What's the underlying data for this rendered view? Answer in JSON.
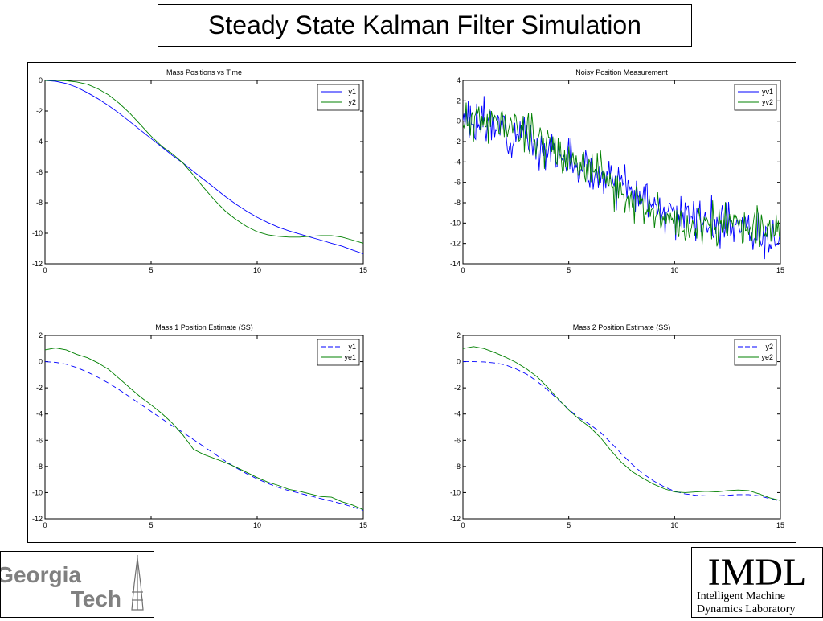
{
  "slide": {
    "title": "Steady State Kalman Filter Simulation"
  },
  "logos": {
    "left": {
      "name": "Georgia Tech",
      "line1": "Georgia",
      "line2": "Tech"
    },
    "right": {
      "acronym": "IMDL",
      "line1": "Intelligent Machine",
      "line2": "Dynamics Laboratory"
    }
  },
  "colors": {
    "blue": "#0000ff",
    "green": "#008000",
    "axis": "#000000"
  },
  "chart_data": [
    {
      "type": "line",
      "title": "Mass Positions vs Time",
      "xlabel": "",
      "ylabel": "",
      "xlim": [
        0,
        15
      ],
      "ylim": [
        -12,
        0
      ],
      "xticks": [
        0,
        5,
        10,
        15
      ],
      "yticks": [
        0,
        -2,
        -4,
        -6,
        -8,
        -10,
        -12
      ],
      "grid": false,
      "legend": "top-right",
      "x": [
        0,
        0.5,
        1,
        1.5,
        2,
        2.5,
        3,
        3.5,
        4,
        4.5,
        5,
        5.5,
        6,
        6.5,
        7,
        7.5,
        8,
        8.5,
        9,
        9.5,
        10,
        10.5,
        11,
        11.5,
        12,
        12.5,
        13,
        13.5,
        14,
        14.5,
        15
      ],
      "series": [
        {
          "name": "y1",
          "style": "solid",
          "color": "blue",
          "values": [
            0,
            -0.05,
            -0.2,
            -0.45,
            -0.8,
            -1.2,
            -1.65,
            -2.15,
            -2.7,
            -3.25,
            -3.8,
            -4.35,
            -4.9,
            -5.4,
            -5.95,
            -6.5,
            -7.05,
            -7.6,
            -8.1,
            -8.55,
            -8.95,
            -9.3,
            -9.6,
            -9.85,
            -10.05,
            -10.25,
            -10.45,
            -10.65,
            -10.85,
            -11.1,
            -11.35
          ]
        },
        {
          "name": "y2",
          "style": "solid",
          "color": "green",
          "values": [
            0,
            0,
            -0.02,
            -0.1,
            -0.25,
            -0.55,
            -0.95,
            -1.5,
            -2.15,
            -2.9,
            -3.65,
            -4.3,
            -4.8,
            -5.4,
            -6.2,
            -7.05,
            -7.85,
            -8.55,
            -9.1,
            -9.55,
            -9.9,
            -10.1,
            -10.2,
            -10.25,
            -10.25,
            -10.2,
            -10.15,
            -10.15,
            -10.25,
            -10.45,
            -10.65
          ]
        }
      ]
    },
    {
      "type": "line",
      "title": "Noisy Position Measurement",
      "xlabel": "",
      "ylabel": "",
      "xlim": [
        0,
        15
      ],
      "ylim": [
        -14,
        4
      ],
      "xticks": [
        0,
        5,
        10,
        15
      ],
      "yticks": [
        4,
        2,
        0,
        -2,
        -4,
        -6,
        -8,
        -10,
        -12,
        -14
      ],
      "grid": false,
      "legend": "top-right",
      "x": [
        0,
        0.5,
        1,
        1.5,
        2,
        2.5,
        3,
        3.5,
        4,
        4.5,
        5,
        5.5,
        6,
        6.5,
        7,
        7.5,
        8,
        8.5,
        9,
        9.5,
        10,
        10.5,
        11,
        11.5,
        12,
        12.5,
        13,
        13.5,
        14,
        14.5,
        15
      ],
      "series": [
        {
          "name": "yv1",
          "style": "solid",
          "color": "blue",
          "noise": 1.0,
          "seed": 3,
          "values": [
            0,
            -0.05,
            -0.2,
            -0.45,
            -0.8,
            -1.2,
            -1.65,
            -2.15,
            -2.7,
            -3.25,
            -3.8,
            -4.35,
            -4.9,
            -5.4,
            -5.95,
            -6.5,
            -7.05,
            -7.6,
            -8.1,
            -8.55,
            -8.95,
            -9.3,
            -9.6,
            -9.85,
            -10.05,
            -10.25,
            -10.45,
            -10.65,
            -10.85,
            -11.1,
            -11.35
          ]
        },
        {
          "name": "yv2",
          "style": "solid",
          "color": "green",
          "noise": 1.0,
          "seed": 11,
          "values": [
            0,
            0,
            -0.02,
            -0.1,
            -0.25,
            -0.55,
            -0.95,
            -1.5,
            -2.15,
            -2.9,
            -3.65,
            -4.3,
            -4.8,
            -5.4,
            -6.2,
            -7.05,
            -7.85,
            -8.55,
            -9.1,
            -9.55,
            -9.9,
            -10.1,
            -10.2,
            -10.25,
            -10.25,
            -10.2,
            -10.15,
            -10.15,
            -10.25,
            -10.45,
            -10.65
          ]
        }
      ]
    },
    {
      "type": "line",
      "title": "Mass 1 Position Estimate (SS)",
      "xlabel": "",
      "ylabel": "",
      "xlim": [
        0,
        15
      ],
      "ylim": [
        -12,
        2
      ],
      "xticks": [
        0,
        5,
        10,
        15
      ],
      "yticks": [
        2,
        0,
        -2,
        -4,
        -6,
        -8,
        -10,
        -12
      ],
      "grid": false,
      "legend": "top-right",
      "x": [
        0,
        0.5,
        1,
        1.5,
        2,
        2.5,
        3,
        3.5,
        4,
        4.5,
        5,
        5.5,
        6,
        6.5,
        7,
        7.5,
        8,
        8.5,
        9,
        9.5,
        10,
        10.5,
        11,
        11.5,
        12,
        12.5,
        13,
        13.5,
        14,
        14.5,
        15
      ],
      "series": [
        {
          "name": "y1",
          "style": "dashed",
          "color": "blue",
          "values": [
            0,
            -0.05,
            -0.2,
            -0.45,
            -0.8,
            -1.2,
            -1.65,
            -2.15,
            -2.7,
            -3.25,
            -3.8,
            -4.35,
            -4.9,
            -5.4,
            -5.95,
            -6.5,
            -7.05,
            -7.6,
            -8.1,
            -8.55,
            -8.95,
            -9.3,
            -9.6,
            -9.85,
            -10.05,
            -10.25,
            -10.45,
            -10.65,
            -10.85,
            -11.1,
            -11.35
          ]
        },
        {
          "name": "ye1",
          "style": "solid",
          "color": "green",
          "values": [
            0.9,
            1.05,
            0.9,
            0.55,
            0.3,
            -0.1,
            -0.6,
            -1.3,
            -2.0,
            -2.7,
            -3.3,
            -3.95,
            -4.7,
            -5.6,
            -6.7,
            -7.1,
            -7.4,
            -7.7,
            -8.05,
            -8.45,
            -8.85,
            -9.2,
            -9.45,
            -9.75,
            -9.9,
            -10.1,
            -10.3,
            -10.35,
            -10.7,
            -10.95,
            -11.3
          ]
        }
      ]
    },
    {
      "type": "line",
      "title": "Mass 2 Position Estimate (SS)",
      "xlabel": "",
      "ylabel": "",
      "xlim": [
        0,
        15
      ],
      "ylim": [
        -12,
        2
      ],
      "xticks": [
        0,
        5,
        10,
        15
      ],
      "yticks": [
        2,
        0,
        -2,
        -4,
        -6,
        -8,
        -10,
        -12
      ],
      "grid": false,
      "legend": "top-right",
      "x": [
        0,
        0.5,
        1,
        1.5,
        2,
        2.5,
        3,
        3.5,
        4,
        4.5,
        5,
        5.5,
        6,
        6.5,
        7,
        7.5,
        8,
        8.5,
        9,
        9.5,
        10,
        10.5,
        11,
        11.5,
        12,
        12.5,
        13,
        13.5,
        14,
        14.5,
        15
      ],
      "series": [
        {
          "name": "y2",
          "style": "dashed",
          "color": "blue",
          "values": [
            0,
            0,
            -0.02,
            -0.1,
            -0.25,
            -0.55,
            -0.95,
            -1.5,
            -2.15,
            -2.9,
            -3.65,
            -4.3,
            -4.8,
            -5.4,
            -6.2,
            -7.05,
            -7.85,
            -8.55,
            -9.1,
            -9.55,
            -9.9,
            -10.1,
            -10.2,
            -10.25,
            -10.25,
            -10.2,
            -10.15,
            -10.15,
            -10.25,
            -10.45,
            -10.65
          ]
        },
        {
          "name": "ye2",
          "style": "solid",
          "color": "green",
          "values": [
            1.0,
            1.15,
            1.0,
            0.7,
            0.35,
            -0.05,
            -0.55,
            -1.15,
            -1.95,
            -2.85,
            -3.7,
            -4.4,
            -5.0,
            -5.8,
            -6.8,
            -7.7,
            -8.4,
            -8.9,
            -9.35,
            -9.7,
            -9.95,
            -10.0,
            -9.95,
            -9.9,
            -9.95,
            -9.85,
            -9.8,
            -9.85,
            -10.1,
            -10.4,
            -10.6
          ]
        }
      ]
    }
  ]
}
